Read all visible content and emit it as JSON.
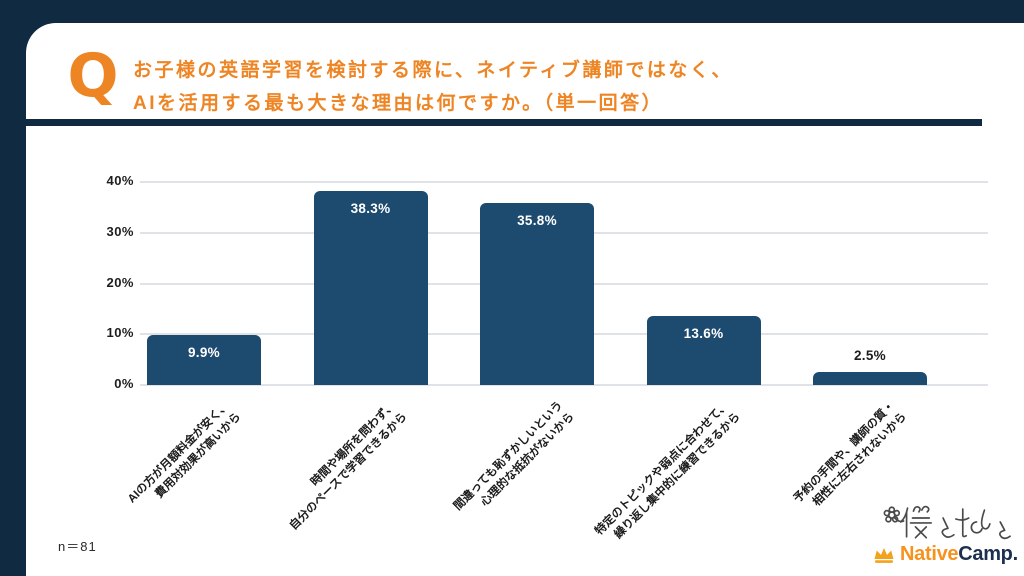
{
  "header": {
    "q_mark": "Q",
    "title_line1": "お子様の英語学習を検討する際に、ネイティブ講師ではなく、",
    "title_line2": "AIを活用する最も大きな理由は何ですか。（単一回答）"
  },
  "footer": {
    "sample_size": "n＝81",
    "brand_doodle_text": "僕と私と",
    "brand_native": "Native",
    "brand_camp": "Camp."
  },
  "colors": {
    "background_navy": "#0f2a41",
    "accent_orange": "#ee8524",
    "bar_fill": "#1d4a6f",
    "gridline_gray": "#dfe2e6",
    "logo_orange": "#f6921e",
    "logo_navy": "#1c2f4e",
    "crown_gold": "#f3a21c",
    "bar_value_label_inside": "#ffffff",
    "bar_value_label_outside": "#1c1c1c"
  },
  "chart_data": {
    "type": "bar",
    "title": "",
    "xlabel": "",
    "ylabel": "",
    "categories": [
      "AIの方が月額料金が安く、\n費用対効果が高いから",
      "時間や場所を問わず、\n自分のペースで学習できるから",
      "間違っても恥ずかしいという\n心理的な抵抗がないから",
      "特定のトピックや弱点に合わせて、\n繰り返し集中的に練習できるから",
      "予約の手間や、講師の質・\n相性に左右されないから"
    ],
    "values": [
      9.9,
      38.3,
      35.8,
      13.6,
      2.5
    ],
    "value_labels": [
      "9.9%",
      "38.3%",
      "35.8%",
      "13.6%",
      "2.5%"
    ],
    "yticks": [
      "0%",
      "10%",
      "20%",
      "30%",
      "40%"
    ],
    "ytick_values": [
      0,
      10,
      20,
      30,
      40
    ],
    "ylim": [
      0,
      40
    ],
    "grid": true,
    "legend": "none",
    "category_label_rotation_deg": -45,
    "value_label_position": "inside-top (outside above bar when bar is too short)"
  }
}
